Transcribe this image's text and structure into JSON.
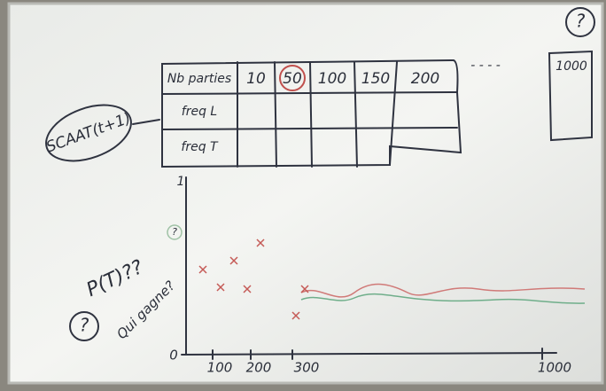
{
  "left_label": "SCAAT(t+1)",
  "table": {
    "header": [
      "Nb parties",
      "10",
      "50",
      "100",
      "150",
      "200"
    ],
    "rows": [
      "freq L",
      "freq T"
    ],
    "ellipsis": "- - - -",
    "extra": {
      "mark": "?",
      "value": "1000"
    }
  },
  "graph": {
    "y_label": "1",
    "side_mark": "?",
    "origin": "0",
    "x_labels": [
      "100",
      "200",
      "300",
      "1000"
    ],
    "annotations": [
      "P(T)??",
      "Qui gagne?",
      "?"
    ]
  }
}
